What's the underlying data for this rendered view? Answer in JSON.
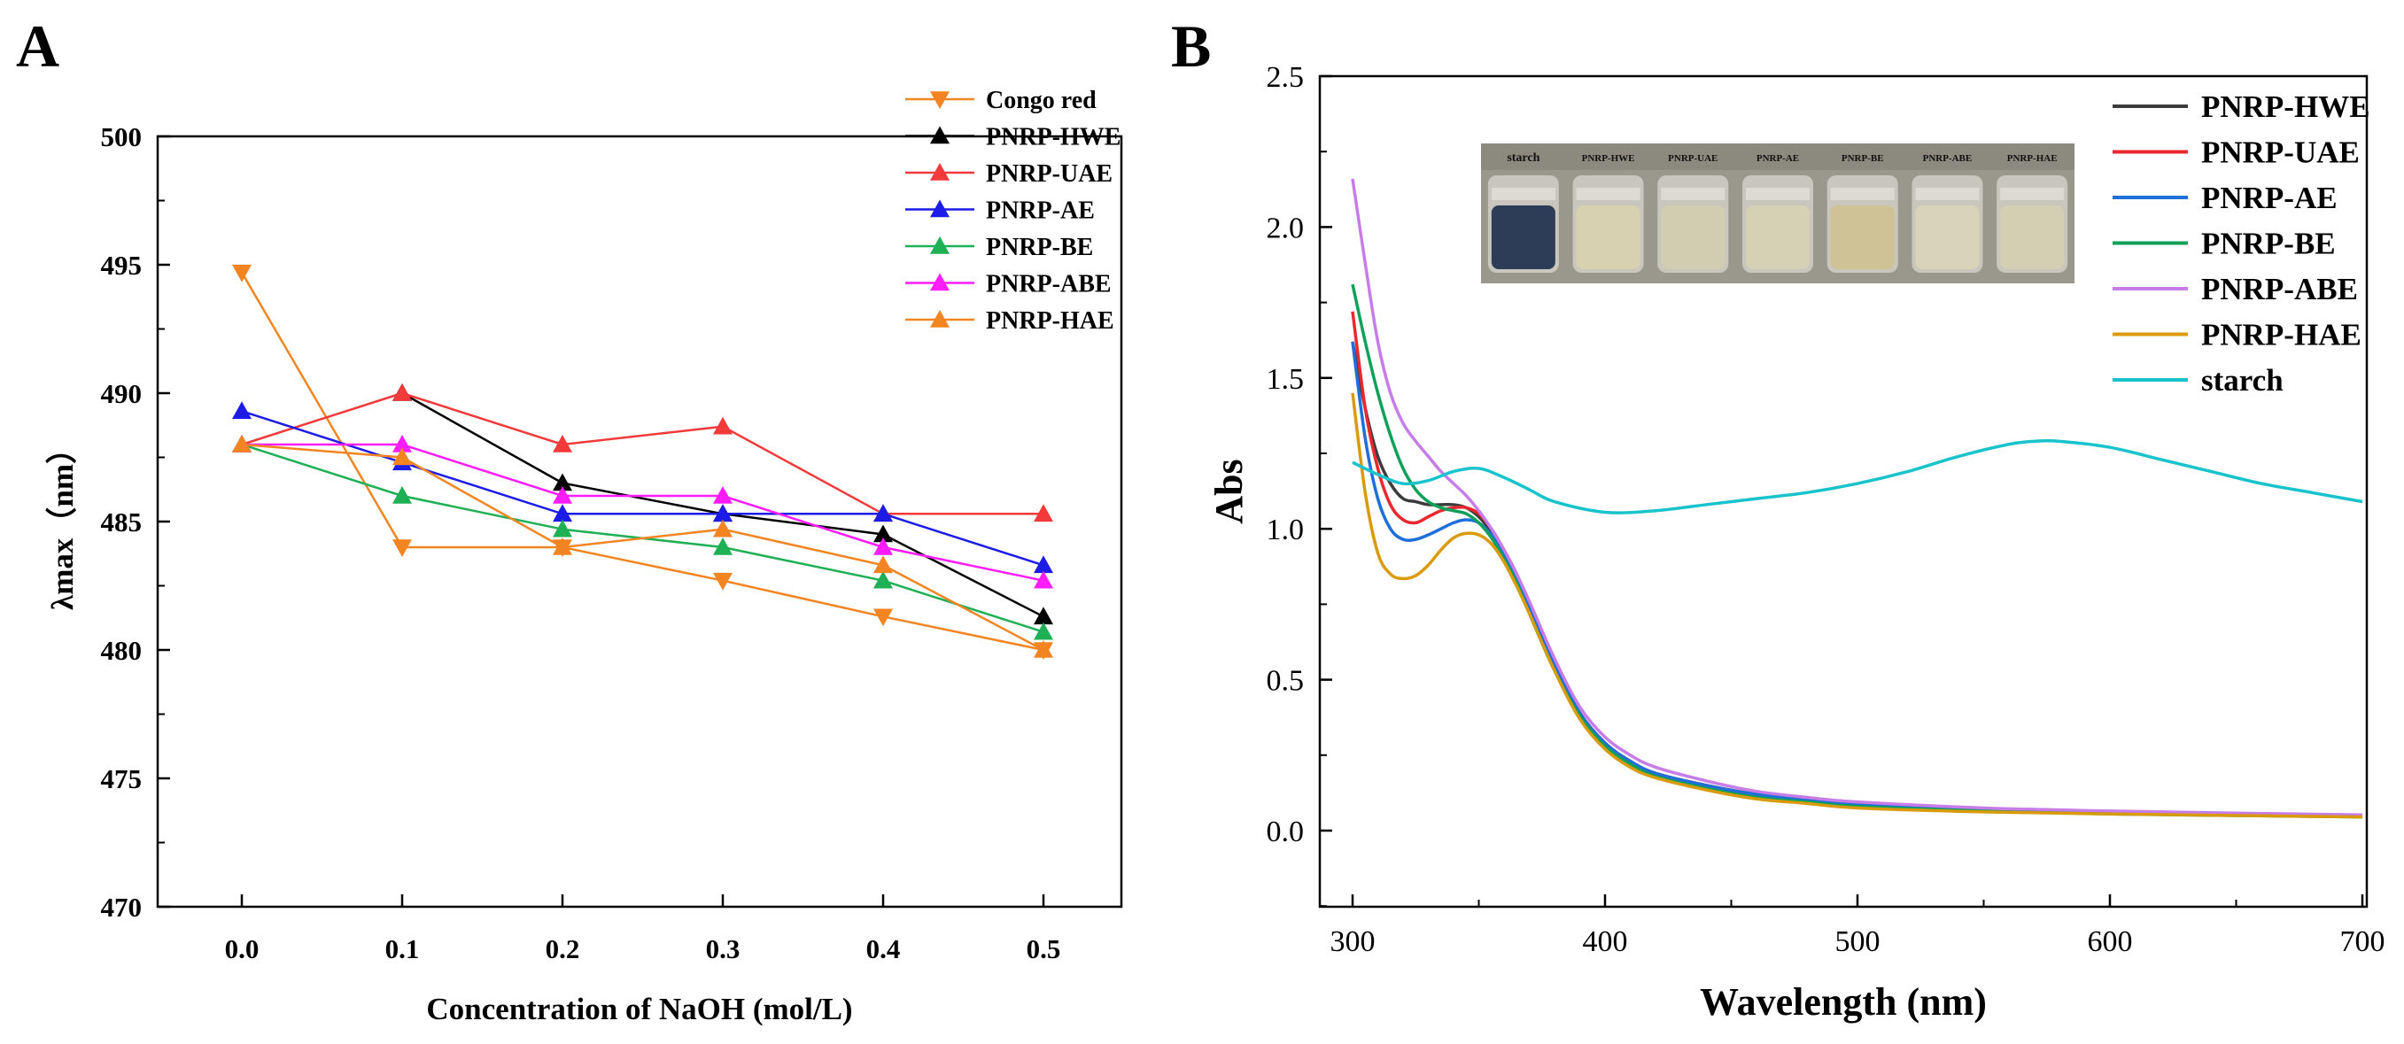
{
  "panels": {
    "a_label": "A",
    "b_label": "B"
  },
  "inset": {
    "labels": [
      "starch",
      "PNRP-HWE",
      "PNRP-UAE",
      "PNRP-AE",
      "PNRP-BE",
      "PNRP-ABE",
      "PNRP-HAE"
    ]
  },
  "chart_data": [
    {
      "type": "line",
      "panel": "A",
      "xlabel": "Concentration of NaOH (mol/L)",
      "ylabel": "λmax（nm）",
      "x": [
        0.0,
        0.1,
        0.2,
        0.3,
        0.4,
        0.5
      ],
      "xtick_labels": [
        "0.0",
        "0.1",
        "0.2",
        "0.3",
        "0.4",
        "0.5"
      ],
      "ylim": [
        470,
        500
      ],
      "yticks": [
        470,
        475,
        480,
        485,
        490,
        495,
        500
      ],
      "legend_position": "top-right",
      "series": [
        {
          "name": "Congo red",
          "color": "#F28522",
          "marker": "triangle-down",
          "values": [
            494.7,
            484.0,
            484.0,
            482.7,
            481.3,
            480.0
          ]
        },
        {
          "name": "PNRP-HWE",
          "color": "#000000",
          "marker": "triangle-up",
          "values": [
            null,
            490.0,
            486.5,
            485.3,
            484.5,
            481.3
          ]
        },
        {
          "name": "PNRP-UAE",
          "color": "#F23A3A",
          "marker": "triangle-up",
          "values": [
            488.0,
            490.0,
            488.0,
            488.7,
            485.3,
            485.3
          ]
        },
        {
          "name": "PNRP-AE",
          "color": "#1C1CE6",
          "marker": "triangle-up",
          "values": [
            489.3,
            487.3,
            485.3,
            485.3,
            485.3,
            483.3
          ]
        },
        {
          "name": "PNRP-BE",
          "color": "#1FAF55",
          "marker": "triangle-up",
          "values": [
            488.0,
            486.0,
            484.7,
            484.0,
            482.7,
            480.7
          ]
        },
        {
          "name": "PNRP-ABE",
          "color": "#FF1CFF",
          "marker": "triangle-up",
          "values": [
            488.0,
            488.0,
            486.0,
            486.0,
            484.0,
            482.7
          ]
        },
        {
          "name": "PNRP-HAE",
          "color": "#F28522",
          "marker": "triangle-up",
          "values": [
            488.0,
            487.5,
            484.0,
            484.7,
            483.3,
            480.0
          ]
        }
      ]
    },
    {
      "type": "line",
      "panel": "B",
      "xlabel": "Wavelength (nm)",
      "ylabel": "Abs",
      "xlim": [
        290,
        700
      ],
      "xticks": [
        300,
        400,
        500,
        600,
        700
      ],
      "ylim": [
        -0.25,
        2.5
      ],
      "yticks": [
        0.0,
        0.5,
        1.0,
        1.5,
        2.0,
        2.5
      ],
      "ytick_labels": [
        "0.0",
        "0.5",
        "1.0",
        "1.5",
        "2.0",
        "2.5"
      ],
      "legend_position": "top-right",
      "series": [
        {
          "name": "PNRP-HWE",
          "color": "#3C3C3C",
          "x": [
            300,
            305,
            310,
            315,
            320,
            325,
            330,
            335,
            340,
            345,
            350,
            355,
            360,
            365,
            370,
            380,
            390,
            400,
            410,
            420,
            440,
            460,
            480,
            500,
            550,
            600,
            650,
            700
          ],
          "values": [
            1.62,
            1.4,
            1.24,
            1.15,
            1.1,
            1.09,
            1.08,
            1.08,
            1.08,
            1.07,
            1.04,
            0.99,
            0.92,
            0.84,
            0.74,
            0.55,
            0.39,
            0.29,
            0.23,
            0.19,
            0.15,
            0.12,
            0.1,
            0.085,
            0.07,
            0.06,
            0.055,
            0.05
          ]
        },
        {
          "name": "PNRP-UAE",
          "color": "#E8282D",
          "x": [
            300,
            305,
            310,
            315,
            320,
            325,
            330,
            335,
            340,
            345,
            350,
            355,
            360,
            365,
            370,
            380,
            390,
            400,
            410,
            420,
            440,
            460,
            480,
            500,
            550,
            600,
            650,
            700
          ],
          "values": [
            1.72,
            1.4,
            1.2,
            1.08,
            1.03,
            1.02,
            1.04,
            1.06,
            1.07,
            1.07,
            1.05,
            1.0,
            0.93,
            0.85,
            0.75,
            0.55,
            0.39,
            0.29,
            0.23,
            0.19,
            0.15,
            0.12,
            0.1,
            0.085,
            0.07,
            0.06,
            0.055,
            0.05
          ]
        },
        {
          "name": "PNRP-AE",
          "color": "#1E6FD9",
          "x": [
            300,
            305,
            310,
            315,
            320,
            325,
            330,
            335,
            340,
            345,
            350,
            355,
            360,
            365,
            370,
            380,
            390,
            400,
            410,
            420,
            440,
            460,
            480,
            500,
            550,
            600,
            650,
            700
          ],
          "values": [
            1.62,
            1.3,
            1.1,
            1.0,
            0.965,
            0.965,
            0.98,
            1.0,
            1.02,
            1.03,
            1.02,
            0.98,
            0.92,
            0.84,
            0.74,
            0.55,
            0.39,
            0.29,
            0.23,
            0.19,
            0.15,
            0.12,
            0.1,
            0.085,
            0.07,
            0.06,
            0.055,
            0.05
          ]
        },
        {
          "name": "PNRP-BE",
          "color": "#0FA05A",
          "x": [
            300,
            305,
            310,
            315,
            320,
            325,
            330,
            335,
            340,
            345,
            350,
            355,
            360,
            365,
            370,
            380,
            390,
            400,
            410,
            420,
            440,
            460,
            480,
            500,
            550,
            600,
            650,
            700
          ],
          "values": [
            1.81,
            1.62,
            1.45,
            1.31,
            1.2,
            1.13,
            1.09,
            1.07,
            1.06,
            1.05,
            1.02,
            0.97,
            0.9,
            0.82,
            0.72,
            0.53,
            0.38,
            0.28,
            0.22,
            0.18,
            0.14,
            0.11,
            0.095,
            0.08,
            0.065,
            0.055,
            0.05,
            0.045
          ]
        },
        {
          "name": "PNRP-ABE",
          "color": "#C77DE8",
          "x": [
            300,
            305,
            310,
            315,
            320,
            325,
            330,
            335,
            340,
            345,
            350,
            355,
            360,
            365,
            370,
            380,
            390,
            400,
            410,
            420,
            440,
            460,
            480,
            500,
            550,
            600,
            650,
            700
          ],
          "values": [
            2.16,
            1.88,
            1.62,
            1.45,
            1.35,
            1.29,
            1.24,
            1.19,
            1.15,
            1.11,
            1.06,
            1.0,
            0.93,
            0.85,
            0.76,
            0.57,
            0.41,
            0.31,
            0.25,
            0.21,
            0.165,
            0.13,
            0.11,
            0.095,
            0.075,
            0.065,
            0.058,
            0.052
          ]
        },
        {
          "name": "PNRP-HAE",
          "color": "#D99A0C",
          "x": [
            300,
            305,
            310,
            315,
            320,
            325,
            330,
            335,
            340,
            345,
            350,
            355,
            360,
            365,
            370,
            380,
            390,
            400,
            410,
            420,
            440,
            460,
            480,
            500,
            550,
            600,
            650,
            700
          ],
          "values": [
            1.45,
            1.12,
            0.92,
            0.85,
            0.835,
            0.845,
            0.88,
            0.93,
            0.97,
            0.985,
            0.98,
            0.95,
            0.89,
            0.81,
            0.72,
            0.53,
            0.37,
            0.27,
            0.21,
            0.175,
            0.135,
            0.105,
            0.09,
            0.075,
            0.062,
            0.055,
            0.05,
            0.045
          ]
        },
        {
          "name": "starch",
          "color": "#18C3CC",
          "x": [
            300,
            310,
            320,
            330,
            340,
            350,
            360,
            370,
            380,
            400,
            420,
            440,
            460,
            480,
            500,
            520,
            540,
            560,
            570,
            580,
            600,
            620,
            640,
            660,
            680,
            700
          ],
          "values": [
            1.22,
            1.18,
            1.15,
            1.16,
            1.19,
            1.2,
            1.17,
            1.13,
            1.09,
            1.055,
            1.06,
            1.08,
            1.1,
            1.12,
            1.15,
            1.19,
            1.24,
            1.28,
            1.29,
            1.29,
            1.27,
            1.23,
            1.19,
            1.15,
            1.12,
            1.09
          ]
        }
      ]
    }
  ]
}
